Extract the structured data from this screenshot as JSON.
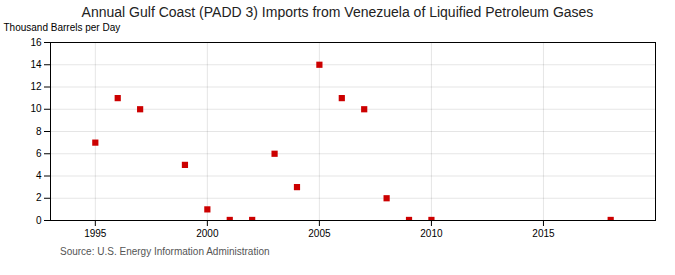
{
  "chart_data": {
    "type": "scatter",
    "title": "Annual Gulf Coast (PADD 3) Imports from Venezuela of Liquified Petroleum Gases",
    "ylabel": "Thousand Barrels per Day",
    "source": "Source: U.S. Energy Information Administration",
    "x": [
      1995,
      1996,
      1997,
      1999,
      2000,
      2001,
      2002,
      2003,
      2004,
      2005,
      2006,
      2007,
      2008,
      2009,
      2010,
      2018
    ],
    "values": [
      7,
      11,
      10,
      5,
      1,
      0.05,
      0.05,
      6,
      3,
      14,
      11,
      10,
      2,
      0.05,
      0.05,
      0.05
    ],
    "color": "#cc0000",
    "marker": "square",
    "xlim": [
      1993,
      2020
    ],
    "ylim": [
      0,
      16
    ],
    "xticks": [
      1995,
      2000,
      2005,
      2010,
      2015
    ],
    "yticks": [
      0,
      2,
      4,
      6,
      8,
      10,
      12,
      14,
      16
    ],
    "grid": true
  }
}
